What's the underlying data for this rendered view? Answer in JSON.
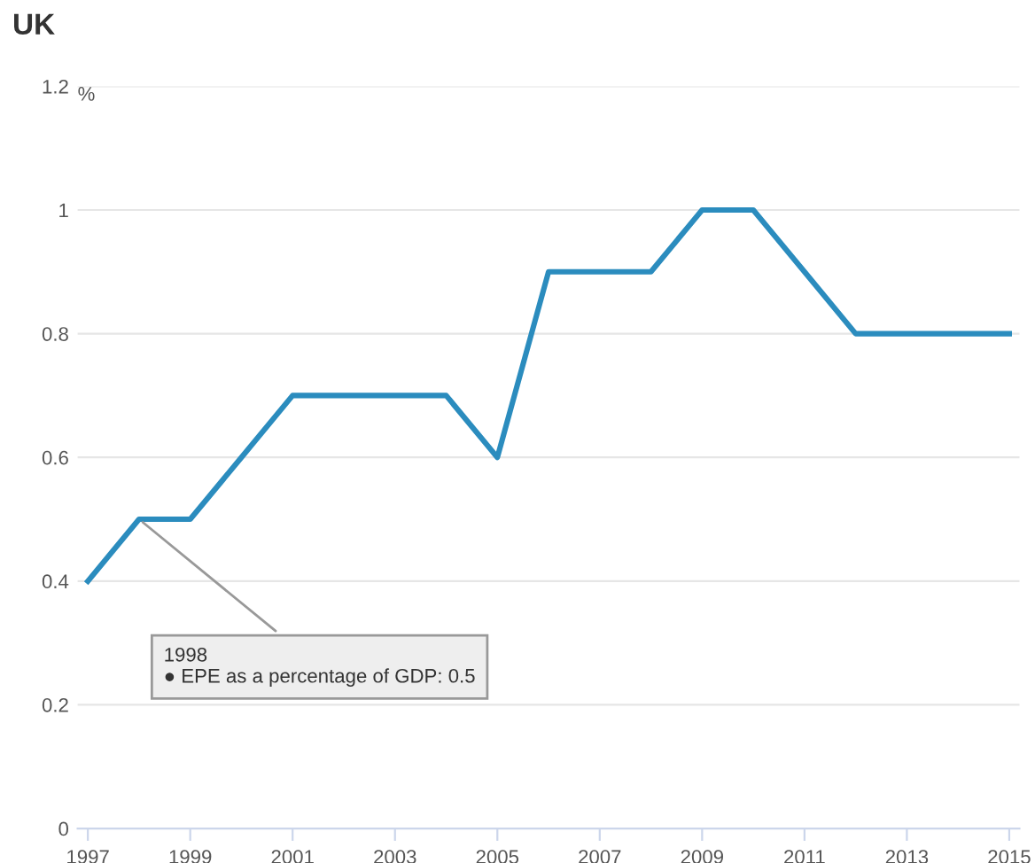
{
  "chart_data": {
    "type": "line",
    "title": "UK",
    "ylabel": "%",
    "x": [
      1997,
      1998,
      1999,
      2000,
      2001,
      2002,
      2003,
      2004,
      2005,
      2006,
      2007,
      2008,
      2009,
      2010,
      2011,
      2012,
      2013,
      2014,
      2015
    ],
    "series": [
      {
        "color": "#2b8cbe",
        "values": [
          0.4,
          0.5,
          0.5,
          0.6,
          0.7,
          0.7,
          0.7,
          0.7,
          0.6,
          0.9,
          0.9,
          0.9,
          1.0,
          1.0,
          0.9,
          0.8,
          0.8,
          0.8,
          0.8
        ]
      }
    ],
    "xlim": [
      1996.8,
      2015.2
    ],
    "xticks": [
      1997,
      1999,
      2001,
      2003,
      2005,
      2007,
      2009,
      2011,
      2013,
      2015
    ],
    "ylim": [
      0,
      1.2
    ],
    "yticks": [
      0,
      0.2,
      0.4,
      0.6,
      0.8,
      1,
      1.2
    ],
    "grid": "y",
    "legend": false,
    "marker": "none",
    "line_style": "solid",
    "annotations": [
      {
        "text": "1998\n● EPE as a percentage of GDP: 0.5",
        "x": 1998,
        "y": 0.5
      }
    ]
  }
}
